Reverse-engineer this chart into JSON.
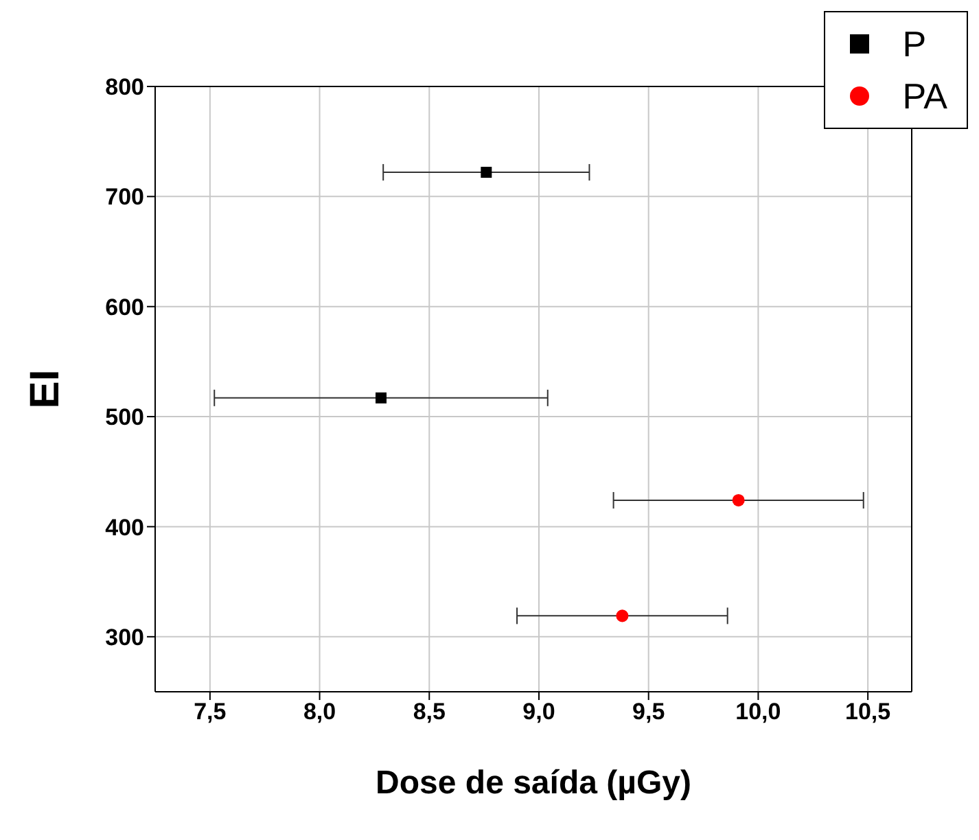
{
  "chart_data": {
    "type": "scatter",
    "xlabel": "Dose de saída (µGy)",
    "ylabel": "EI",
    "xlim": [
      7.25,
      10.7
    ],
    "xticks": [
      {
        "value": 7.5,
        "label": "7,5"
      },
      {
        "value": 8,
        "label": "8,0"
      },
      {
        "value": 8.5,
        "label": "8,5"
      },
      {
        "value": 9,
        "label": "9,0"
      },
      {
        "value": 9.5,
        "label": "9,5"
      },
      {
        "value": 10,
        "label": "10,0"
      },
      {
        "value": 10.5,
        "label": "10,5"
      }
    ],
    "ylim": [
      250,
      800
    ],
    "yticks": [
      300,
      400,
      500,
      600,
      700,
      800
    ],
    "grid": true,
    "legend": "top right",
    "series": [
      {
        "name": "P",
        "color": "#000000",
        "marker": "square",
        "x": [
          8.76,
          8.28
        ],
        "values": [
          722,
          517
        ],
        "xerrors": [
          0.47,
          0.76
        ]
      },
      {
        "name": "PA",
        "color": "#ff0000",
        "marker": "circle",
        "x": [
          9.91,
          9.38
        ],
        "values": [
          424,
          319
        ],
        "xerrors": [
          0.57,
          0.48
        ]
      }
    ]
  }
}
